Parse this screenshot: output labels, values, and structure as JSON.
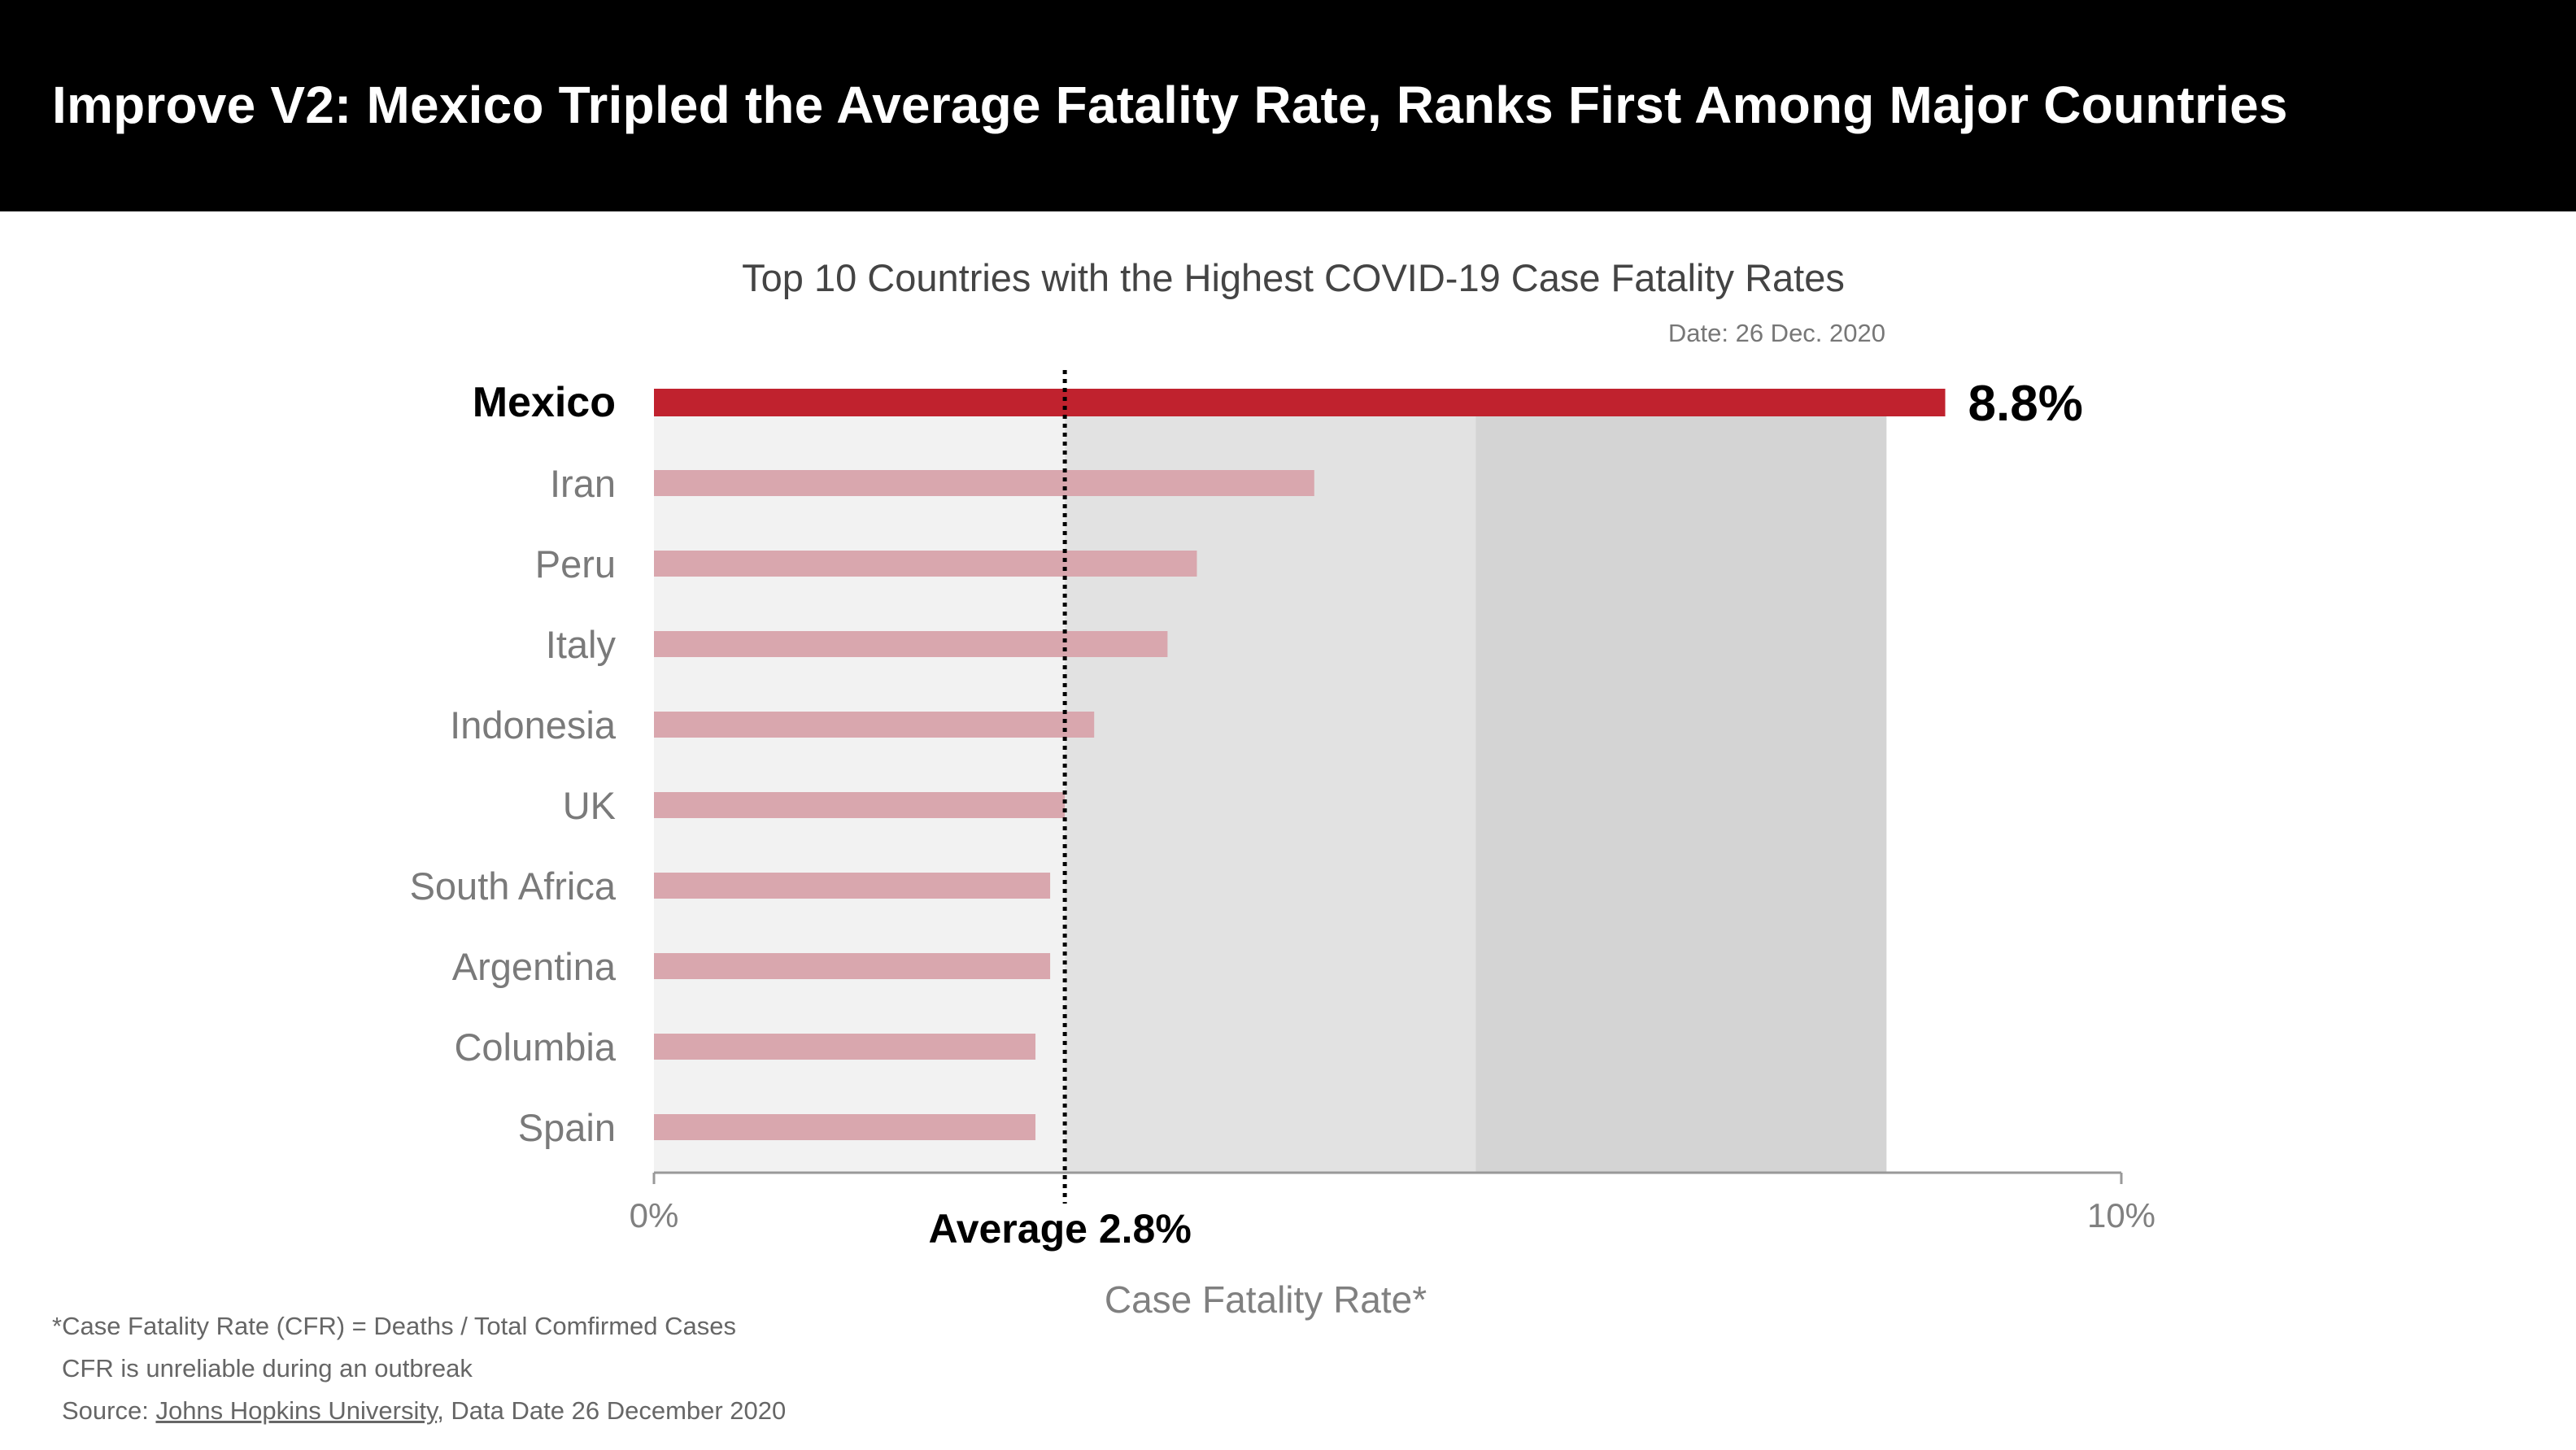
{
  "header": {
    "title": "Improve V2: Mexico Tripled the Average Fatality Rate, Ranks First Among Major Countries"
  },
  "chart_data": {
    "type": "bar",
    "orientation": "horizontal",
    "title": "Top 10 Countries with the Highest COVID-19 Case Fatality Rates",
    "subtitle": "Date: 26 Dec. 2020",
    "categories": [
      "Mexico",
      "Iran",
      "Peru",
      "Italy",
      "Indonesia",
      "UK",
      "South Africa",
      "Argentina",
      "Columbia",
      "Spain"
    ],
    "values": [
      8.8,
      4.5,
      3.7,
      3.5,
      3.0,
      2.8,
      2.7,
      2.7,
      2.6,
      2.6
    ],
    "highlight_category": "Mexico",
    "highlight_value_label": "8.8%",
    "xlabel": "Case Fatality Rate*",
    "ylabel": "",
    "xlim": [
      0,
      10
    ],
    "x_ticks": [
      "0%",
      "10%"
    ],
    "average": {
      "value": 2.8,
      "label": "Average 2.8%"
    },
    "shaded_bands": [
      {
        "from": 0,
        "to": 2.8
      },
      {
        "from": 2.8,
        "to": 5.6
      },
      {
        "from": 5.6,
        "to": 8.4
      }
    ],
    "colors": {
      "highlight": "#c0222e",
      "bar": "#d9a7ae",
      "band_light": "#f2f2f2",
      "band_mid": "#e2e2e2",
      "band_dark": "#d4d4d4"
    },
    "grid": false,
    "legend": "none"
  },
  "footnotes": {
    "definition": "*Case Fatality Rate (CFR) = Deaths / Total Comfirmed Cases",
    "caveat": "CFR is unreliable during an outbreak",
    "source_prefix": "Source: ",
    "source_link": "Johns Hopkins University",
    "source_suffix": ", Data Date 26 December 2020"
  }
}
